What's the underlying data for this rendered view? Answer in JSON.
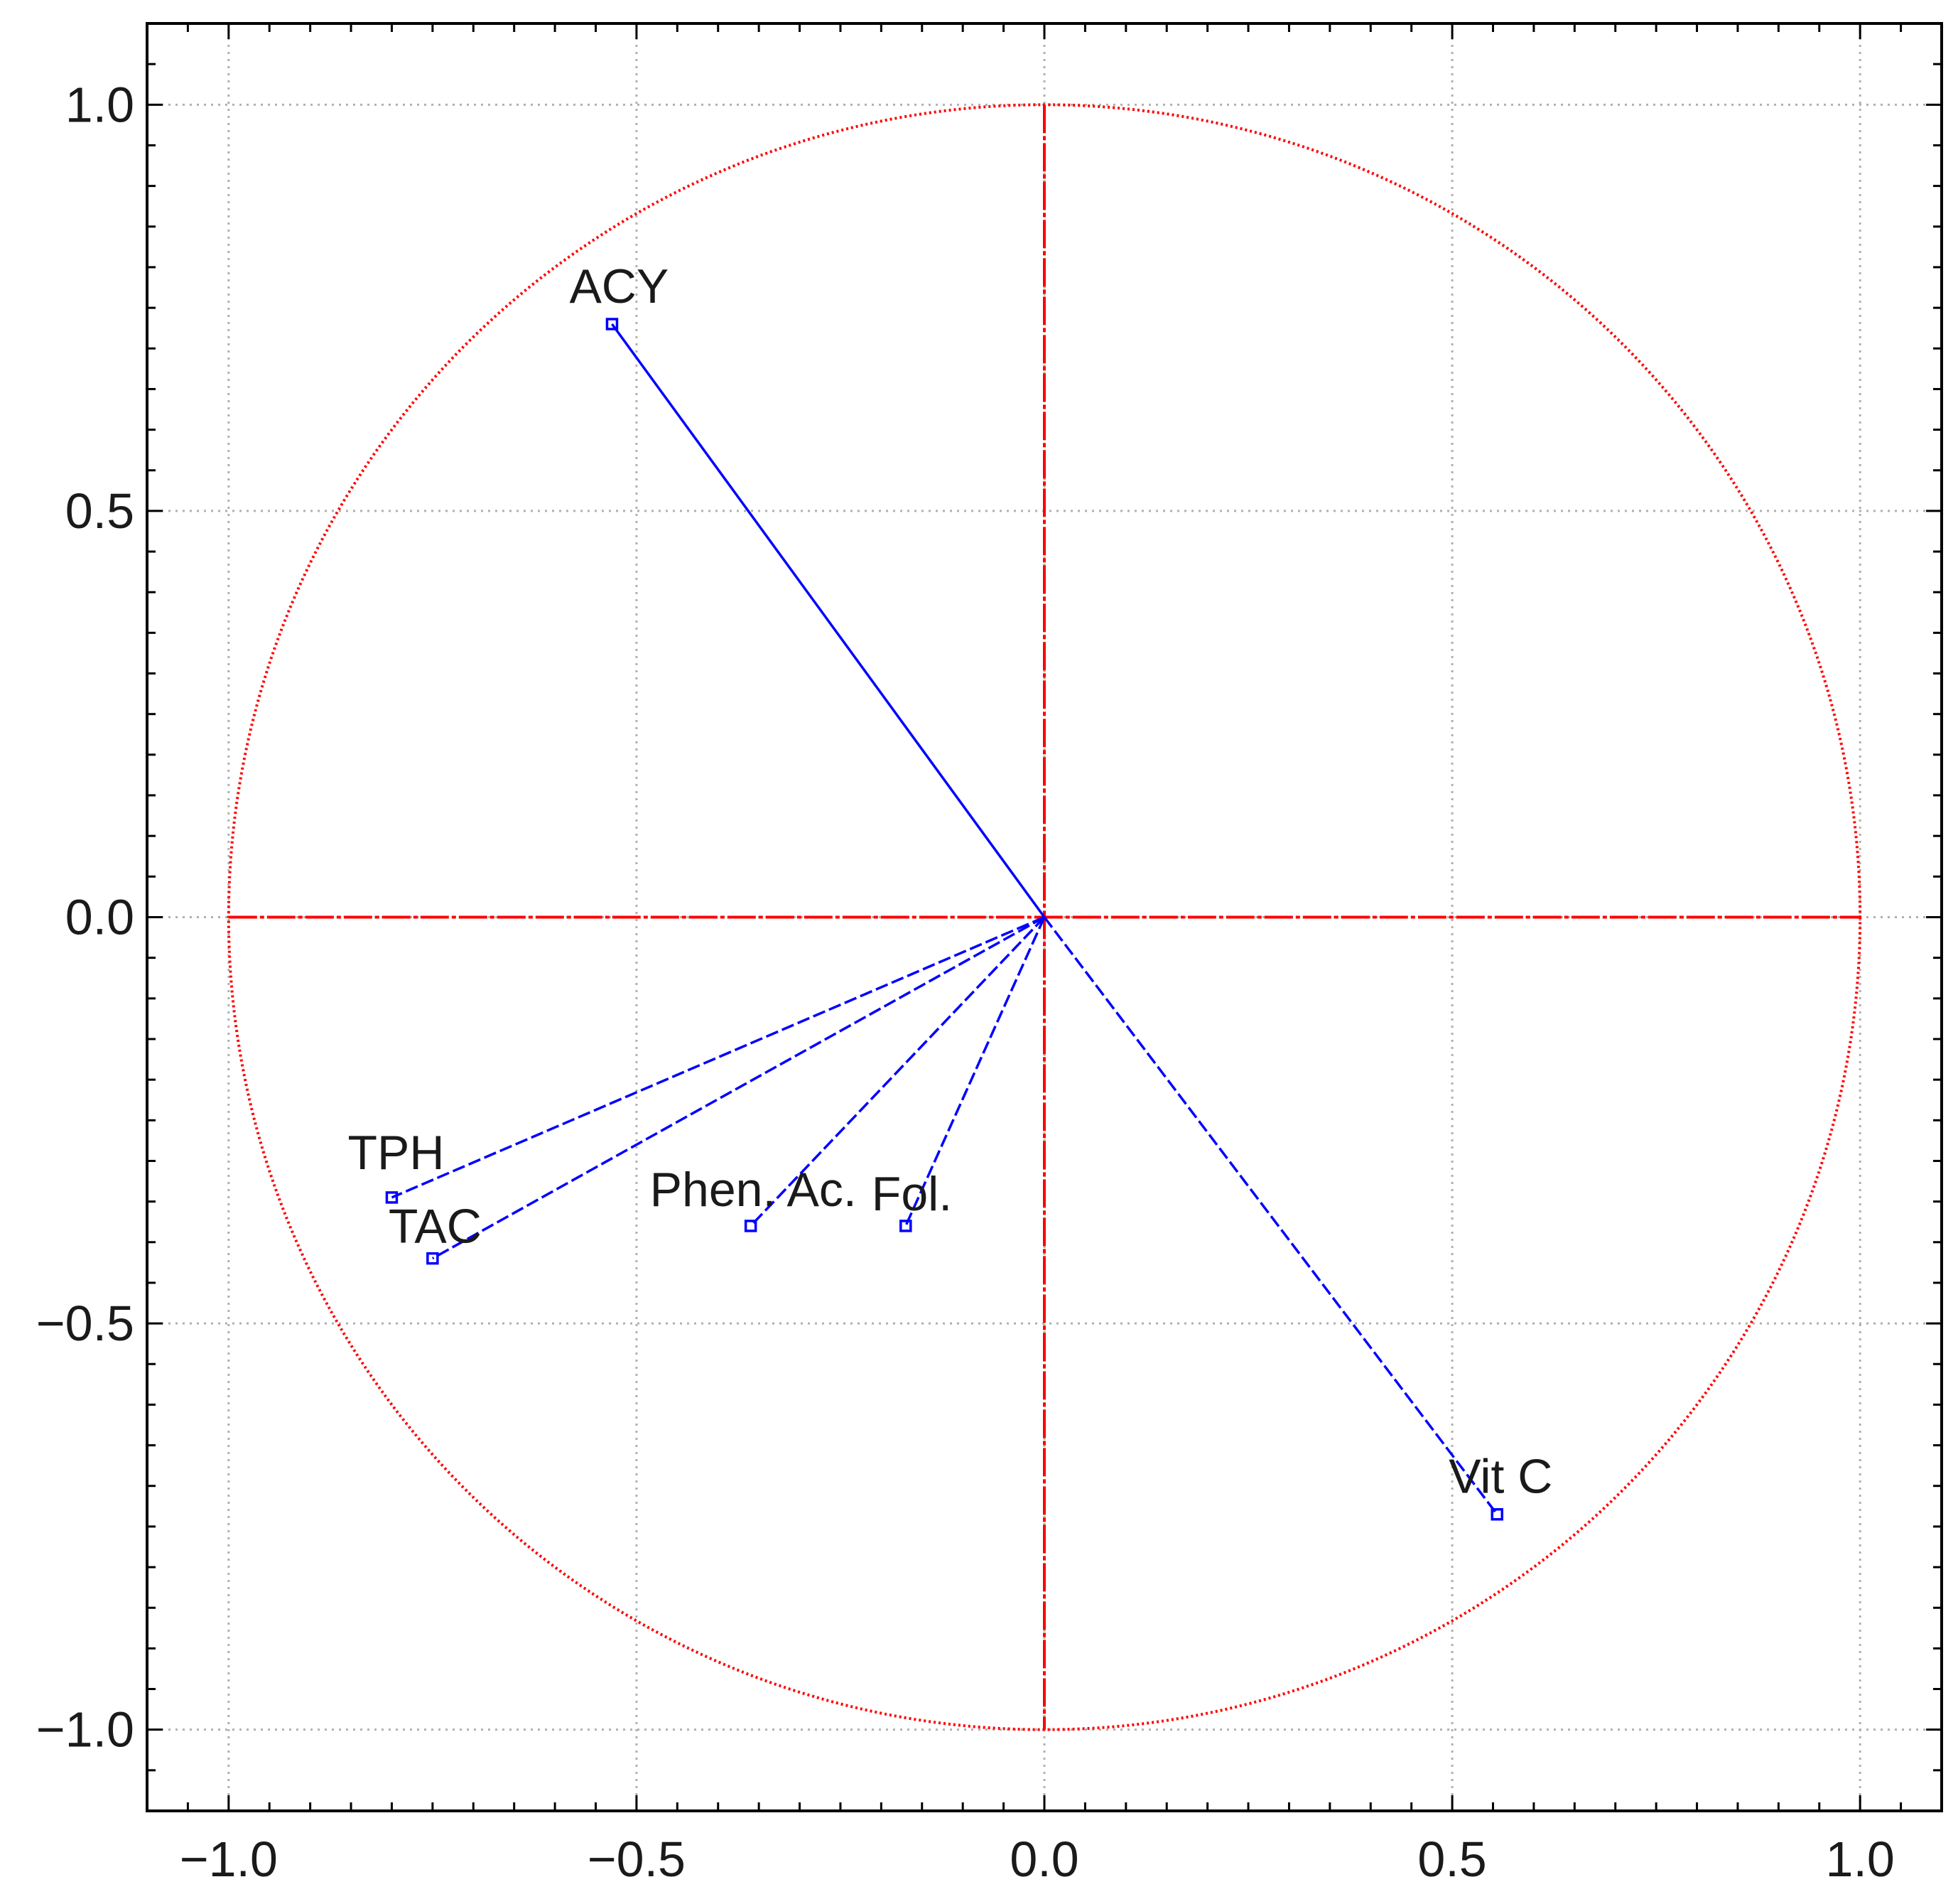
{
  "chart_data": {
    "type": "scatter",
    "title": "",
    "xlabel": "",
    "ylabel": "",
    "xlim": [
      -1.1,
      1.1
    ],
    "ylim": [
      -1.1,
      1.1
    ],
    "grid": true,
    "x_ticks": [
      "-1.0",
      "-0.5",
      "0.0",
      "0.5",
      "1.0"
    ],
    "y_ticks": [
      "1.0",
      "0.5",
      "0.0",
      "-0.5",
      "-1.0"
    ],
    "unit_circle": true,
    "colors": {
      "circle": "#ff0000",
      "vectors": "#0000ff",
      "grid": "#b0b0b0"
    },
    "points": [
      {
        "label": "ACY",
        "x": -0.53,
        "y": 0.73
      },
      {
        "label": "TPH",
        "x": -0.8,
        "y": -0.345
      },
      {
        "label": "TAC",
        "x": -0.75,
        "y": -0.42
      },
      {
        "label": "Phen. Ac.",
        "x": -0.36,
        "y": -0.38
      },
      {
        "label": "Fol.",
        "x": -0.17,
        "y": -0.38
      },
      {
        "label": "Vit C",
        "x": 0.555,
        "y": -0.735
      }
    ]
  }
}
